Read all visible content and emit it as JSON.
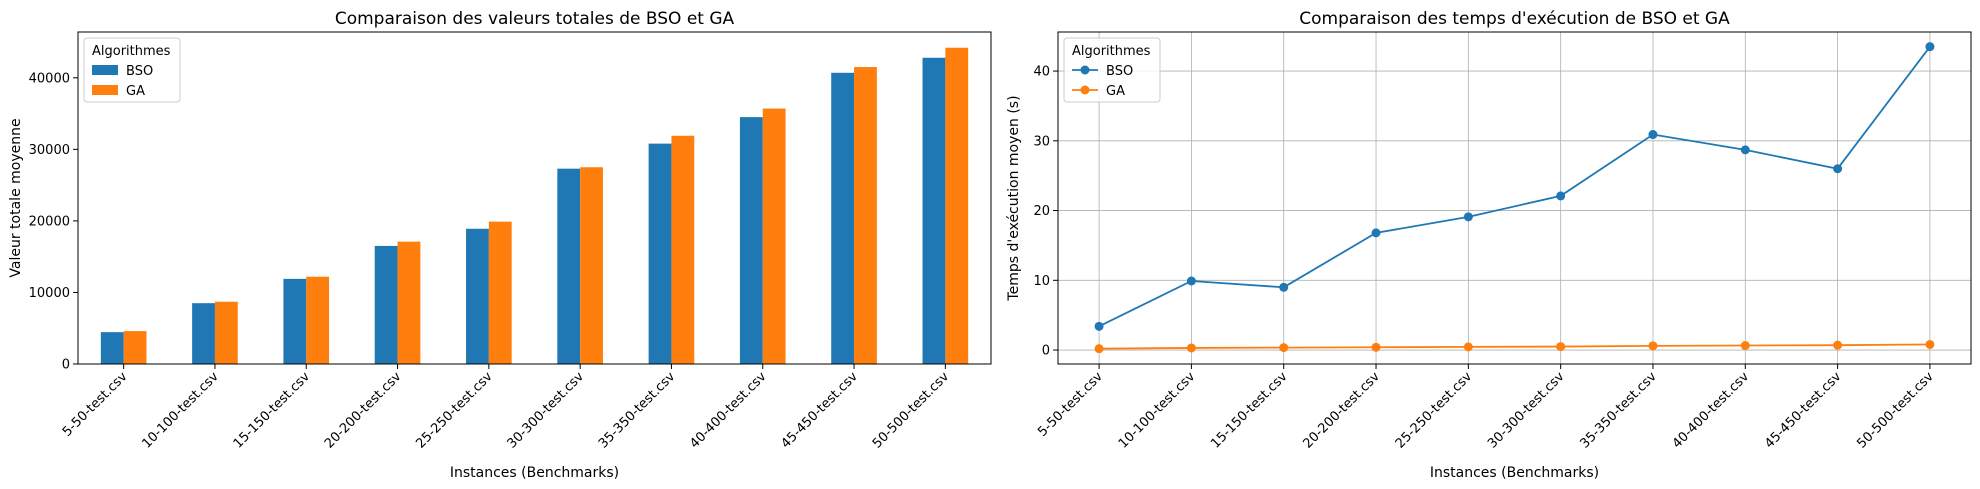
{
  "chart_data": [
    {
      "type": "bar",
      "title": "Comparaison des valeurs totales de BSO et GA",
      "xlabel": "Instances (Benchmarks)",
      "ylabel": "Valeur totale moyenne",
      "categories": [
        "5-50-test.csv",
        "10-100-test.csv",
        "15-150-test.csv",
        "20-200-test.csv",
        "25-250-test.csv",
        "30-300-test.csv",
        "35-350-test.csv",
        "40-400-test.csv",
        "45-450-test.csv",
        "50-500-test.csv"
      ],
      "series": [
        {
          "name": "BSO",
          "color": "#1f77b4",
          "values": [
            4450,
            8500,
            11900,
            16500,
            18900,
            27300,
            30800,
            34500,
            40700,
            42800
          ]
        },
        {
          "name": "GA",
          "color": "#ff7f0e",
          "values": [
            4600,
            8700,
            12200,
            17100,
            19900,
            27500,
            31900,
            35700,
            41500,
            44200
          ]
        }
      ],
      "ylim": [
        0,
        46400
      ],
      "yticks": [
        0,
        10000,
        20000,
        30000,
        40000
      ],
      "grid": false,
      "legend": {
        "title": "Algorithmes",
        "placement": "top-left"
      }
    },
    {
      "type": "line",
      "title": "Comparaison des temps d'exécution de BSO et GA",
      "xlabel": "Instances (Benchmarks)",
      "ylabel": "Temps d'exécution moyen (s)",
      "categories": [
        "5-50-test.csv",
        "10-100-test.csv",
        "15-150-test.csv",
        "20-200-test.csv",
        "25-250-test.csv",
        "30-300-test.csv",
        "35-350-test.csv",
        "40-400-test.csv",
        "45-450-test.csv",
        "50-500-test.csv"
      ],
      "series": [
        {
          "name": "BSO",
          "color": "#1f77b4",
          "values": [
            3.4,
            9.9,
            9.0,
            16.8,
            19.1,
            22.1,
            30.9,
            28.7,
            26.0,
            43.5
          ]
        },
        {
          "name": "GA",
          "color": "#ff7f0e",
          "values": [
            0.2,
            0.3,
            0.35,
            0.4,
            0.45,
            0.5,
            0.6,
            0.65,
            0.7,
            0.8
          ]
        }
      ],
      "ylim": [
        -2.0,
        45.6
      ],
      "yticks": [
        0,
        10,
        20,
        30,
        40
      ],
      "grid": true,
      "legend": {
        "title": "Algorithmes",
        "placement": "top-left"
      }
    }
  ]
}
